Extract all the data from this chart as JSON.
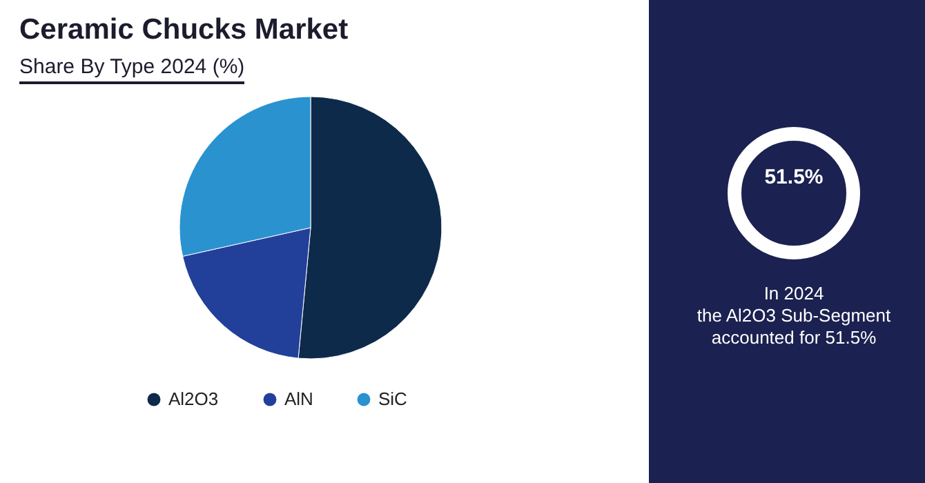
{
  "chart_data": {
    "type": "pie",
    "title": "Ceramic Chucks Market",
    "subtitle": "Share By Type 2024 (%)",
    "categories": [
      "Al2O3",
      "AlN",
      "SiC"
    ],
    "values": [
      51.5,
      20,
      28.5
    ],
    "colors": [
      "#0e2a4a",
      "#22409a",
      "#2b92d0"
    ],
    "legend": "bottom",
    "annotations": [
      "51.5%",
      "In 2024\nthe Al2O3 Sub-Segment\naccounted for 51.5%"
    ]
  }
}
